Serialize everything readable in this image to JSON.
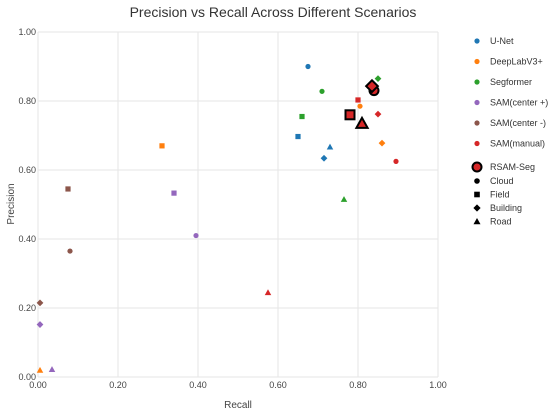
{
  "chart_data": {
    "type": "scatter",
    "title": "Precision vs Recall Across Different Scenarios",
    "xlabel": "Recall",
    "ylabel": "Precision",
    "xlim": [
      0,
      1
    ],
    "ylim": [
      0,
      1
    ],
    "xticks": [
      "0.00",
      "0.20",
      "0.40",
      "0.60",
      "0.80",
      "1.00"
    ],
    "yticks": [
      "0.00",
      "0.20",
      "0.40",
      "0.60",
      "0.80",
      "1.00"
    ],
    "grid": true,
    "legend_position": "right",
    "scenarios": [
      {
        "name": "Cloud",
        "marker": "circle"
      },
      {
        "name": "Field",
        "marker": "square"
      },
      {
        "name": "Building",
        "marker": "diamond"
      },
      {
        "name": "Road",
        "marker": "triangle"
      }
    ],
    "series": [
      {
        "name": "U-Net",
        "color": "#1f77b4",
        "points": [
          {
            "scenario": "Cloud",
            "x": 0.675,
            "y": 0.9
          },
          {
            "scenario": "Field",
            "x": 0.65,
            "y": 0.697
          },
          {
            "scenario": "Building",
            "x": 0.715,
            "y": 0.634
          },
          {
            "scenario": "Road",
            "x": 0.73,
            "y": 0.667
          }
        ]
      },
      {
        "name": "DeepLabV3+",
        "color": "#ff7f0e",
        "points": [
          {
            "scenario": "Cloud",
            "x": 0.805,
            "y": 0.785
          },
          {
            "scenario": "Field",
            "x": 0.31,
            "y": 0.67
          },
          {
            "scenario": "Building",
            "x": 0.86,
            "y": 0.678
          },
          {
            "scenario": "Road",
            "x": 0.005,
            "y": 0.02
          }
        ]
      },
      {
        "name": "Segformer",
        "color": "#2ca02c",
        "points": [
          {
            "scenario": "Cloud",
            "x": 0.71,
            "y": 0.828
          },
          {
            "scenario": "Field",
            "x": 0.66,
            "y": 0.755
          },
          {
            "scenario": "Building",
            "x": 0.85,
            "y": 0.865
          },
          {
            "scenario": "Road",
            "x": 0.765,
            "y": 0.515
          }
        ]
      },
      {
        "name": "SAM(center +)",
        "color": "#9467bd",
        "points": [
          {
            "scenario": "Cloud",
            "x": 0.395,
            "y": 0.41
          },
          {
            "scenario": "Field",
            "x": 0.34,
            "y": 0.533
          },
          {
            "scenario": "Building",
            "x": 0.005,
            "y": 0.152
          },
          {
            "scenario": "Road",
            "x": 0.035,
            "y": 0.022
          }
        ]
      },
      {
        "name": "SAM(center -)",
        "color": "#8c564b",
        "points": [
          {
            "scenario": "Cloud",
            "x": 0.08,
            "y": 0.365
          },
          {
            "scenario": "Field",
            "x": 0.075,
            "y": 0.545
          },
          {
            "scenario": "Building",
            "x": 0.005,
            "y": 0.215
          }
        ]
      },
      {
        "name": "SAM(manual)",
        "color": "#d62728",
        "points": [
          {
            "scenario": "Cloud",
            "x": 0.895,
            "y": 0.625
          },
          {
            "scenario": "Field",
            "x": 0.8,
            "y": 0.803
          },
          {
            "scenario": "Building",
            "x": 0.85,
            "y": 0.762
          },
          {
            "scenario": "Road",
            "x": 0.575,
            "y": 0.245
          }
        ]
      },
      {
        "name": "RSAM-Seg",
        "color": "#d62728",
        "outlined": true,
        "points": [
          {
            "scenario": "Cloud",
            "x": 0.84,
            "y": 0.83
          },
          {
            "scenario": "Field",
            "x": 0.78,
            "y": 0.76
          },
          {
            "scenario": "Building",
            "x": 0.835,
            "y": 0.843
          },
          {
            "scenario": "Road",
            "x": 0.81,
            "y": 0.735
          }
        ]
      }
    ]
  }
}
